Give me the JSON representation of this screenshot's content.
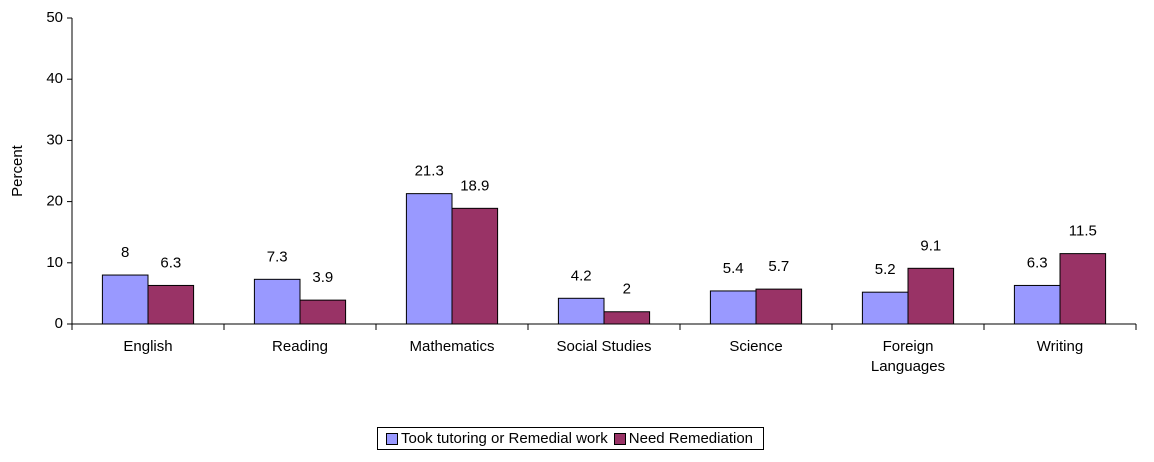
{
  "chart_data": {
    "type": "bar",
    "y_label": "Percent",
    "categories": [
      "English",
      "Reading",
      "Mathematics",
      "Social Studies",
      "Science",
      "Foreign Languages",
      "Writing"
    ],
    "series": [
      {
        "name": "Took tutoring or Remedial work",
        "color": "#9999ff",
        "values": [
          8,
          7.3,
          21.3,
          4.2,
          5.4,
          5.2,
          6.3
        ]
      },
      {
        "name": "Need Remediation",
        "color": "#993366",
        "values": [
          6.3,
          3.9,
          18.9,
          2,
          5.7,
          9.1,
          11.5
        ]
      }
    ],
    "ylim": [
      0,
      50
    ],
    "yticks": [
      0,
      10,
      20,
      30,
      40,
      50
    ],
    "grid": false,
    "legend": "bottom"
  }
}
